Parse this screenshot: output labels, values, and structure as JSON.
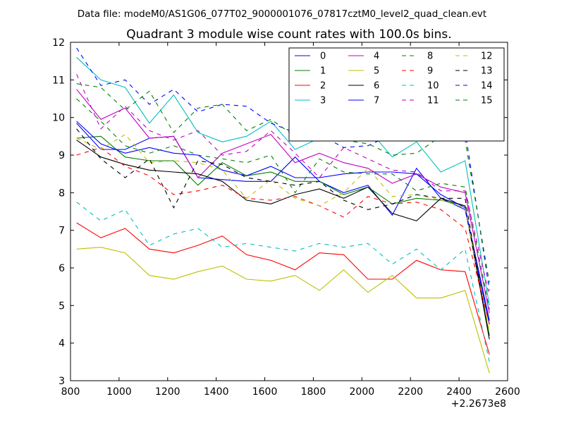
{
  "file_label": "Data file: modeM0/AS1G06_077T02_9000001076_07817cztM0_level2_quad_clean.evt",
  "chart_data": {
    "type": "line",
    "title": "Quadrant 3 module wise count rates with 100.0s bins.",
    "xlabel": "",
    "ylabel": "",
    "x_offset_label": "+2.2673e8",
    "xlim": [
      800,
      2600
    ],
    "ylim": [
      3,
      12
    ],
    "xticks": [
      "800",
      "1000",
      "1200",
      "1400",
      "1600",
      "1800",
      "2000",
      "2200",
      "2400",
      "2600"
    ],
    "yticks": [
      "3",
      "4",
      "5",
      "6",
      "7",
      "8",
      "9",
      "10",
      "11",
      "12"
    ],
    "legend_position": "top-right",
    "x": [
      825,
      925,
      1025,
      1125,
      1225,
      1325,
      1425,
      1525,
      1625,
      1725,
      1825,
      1925,
      2025,
      2125,
      2225,
      2325,
      2425,
      2525
    ],
    "series": [
      {
        "name": "0",
        "color": "#0000ff",
        "dash": "solid",
        "values": [
          9.85,
          9.15,
          9.15,
          9.45,
          9.5,
          8.4,
          8.35,
          8.3,
          8.3,
          8.95,
          8.3,
          8.0,
          8.2,
          7.4,
          8.65,
          7.85,
          7.55,
          4.5
        ]
      },
      {
        "name": "1",
        "color": "#008000",
        "dash": "solid",
        "values": [
          9.45,
          9.5,
          8.95,
          8.85,
          8.85,
          8.2,
          8.8,
          8.45,
          8.55,
          8.3,
          8.3,
          7.95,
          8.15,
          7.7,
          7.85,
          7.8,
          7.65,
          4.2
        ]
      },
      {
        "name": "2",
        "color": "#ff0000",
        "dash": "solid",
        "values": [
          7.2,
          6.8,
          7.05,
          6.5,
          6.4,
          6.6,
          6.85,
          6.35,
          6.2,
          5.95,
          6.4,
          6.35,
          5.7,
          5.7,
          6.2,
          5.95,
          5.9,
          3.7
        ]
      },
      {
        "name": "3",
        "color": "#00bfbf",
        "dash": "solid",
        "values": [
          11.6,
          11.0,
          10.8,
          9.85,
          10.6,
          9.6,
          9.35,
          9.5,
          9.9,
          9.15,
          9.45,
          9.55,
          9.7,
          8.95,
          9.35,
          8.55,
          8.85,
          5.0
        ]
      },
      {
        "name": "4",
        "color": "#bf00bf",
        "dash": "solid",
        "values": [
          10.75,
          9.95,
          10.25,
          9.45,
          9.5,
          8.4,
          9.05,
          9.3,
          9.55,
          8.8,
          9.05,
          8.8,
          8.65,
          8.25,
          8.5,
          8.15,
          8.0,
          4.8
        ]
      },
      {
        "name": "5",
        "color": "#bfbf00",
        "dash": "solid",
        "values": [
          6.5,
          6.55,
          6.4,
          5.8,
          5.7,
          5.9,
          6.05,
          5.7,
          5.65,
          5.8,
          5.4,
          5.95,
          5.35,
          5.8,
          5.2,
          5.2,
          5.4,
          3.2
        ]
      },
      {
        "name": "6",
        "color": "#000000",
        "dash": "solid",
        "values": [
          9.4,
          8.95,
          8.75,
          8.6,
          8.55,
          8.5,
          8.3,
          7.8,
          7.7,
          7.95,
          8.1,
          7.85,
          8.15,
          7.45,
          7.25,
          7.85,
          7.65,
          4.1
        ]
      },
      {
        "name": "7",
        "color": "#0000ff",
        "dash": "solid",
        "values": [
          9.9,
          9.3,
          9.05,
          9.2,
          9.05,
          9.0,
          8.6,
          8.45,
          8.7,
          8.4,
          8.4,
          8.5,
          8.55,
          8.55,
          8.5,
          7.95,
          7.6,
          4.6
        ]
      },
      {
        "name": "8",
        "color": "#008000",
        "dash": "dashed",
        "values": [
          10.5,
          9.9,
          9.25,
          9.05,
          9.25,
          9.0,
          8.9,
          8.8,
          9.0,
          8.0,
          8.9,
          8.55,
          8.5,
          8.5,
          8.05,
          8.25,
          8.15,
          4.9
        ]
      },
      {
        "name": "9",
        "color": "#ff0000",
        "dash": "dashed",
        "values": [
          9.0,
          9.2,
          8.7,
          8.45,
          7.95,
          8.05,
          8.2,
          7.85,
          7.8,
          7.9,
          7.65,
          7.35,
          7.9,
          7.7,
          7.75,
          7.55,
          7.05,
          4.5
        ]
      },
      {
        "name": "10",
        "color": "#00bfbf",
        "dash": "dashed",
        "values": [
          7.75,
          7.25,
          7.55,
          6.6,
          6.9,
          7.05,
          6.55,
          6.65,
          6.55,
          6.45,
          6.65,
          6.55,
          6.65,
          6.1,
          6.5,
          5.95,
          6.5,
          3.5
        ]
      },
      {
        "name": "11",
        "color": "#bf00bf",
        "dash": "dashed",
        "values": [
          11.15,
          9.7,
          10.3,
          9.65,
          9.4,
          9.65,
          9.0,
          9.1,
          9.65,
          9.05,
          8.4,
          9.2,
          8.9,
          8.6,
          8.55,
          8.05,
          8.05,
          5.25
        ]
      },
      {
        "name": "12",
        "color": "#bfbf00",
        "dash": "dashed",
        "values": [
          9.45,
          9.15,
          9.55,
          8.8,
          8.85,
          8.8,
          8.6,
          7.85,
          8.35,
          7.85,
          7.65,
          8.0,
          8.65,
          7.9,
          7.95,
          7.8,
          7.6,
          4.3
        ]
      },
      {
        "name": "13",
        "color": "#000000",
        "dash": "dashed",
        "values": [
          9.7,
          8.9,
          8.4,
          8.9,
          7.6,
          8.85,
          8.75,
          8.4,
          8.3,
          8.2,
          8.3,
          7.8,
          7.55,
          7.7,
          7.95,
          7.85,
          7.85,
          4.1
        ]
      },
      {
        "name": "14",
        "color": "#0000ff",
        "dash": "dashed",
        "values": [
          11.85,
          10.85,
          11.0,
          10.35,
          10.75,
          10.15,
          10.35,
          10.3,
          9.85,
          9.6,
          9.55,
          9.2,
          9.25,
          9.55,
          9.4,
          9.5,
          9.65,
          5.4
        ]
      },
      {
        "name": "15",
        "color": "#008000",
        "dash": "dashed",
        "values": [
          10.9,
          10.8,
          10.2,
          10.7,
          9.6,
          10.25,
          10.35,
          9.65,
          9.95,
          9.5,
          9.55,
          9.4,
          9.3,
          9.0,
          9.05,
          9.5,
          9.4,
          5.6
        ]
      }
    ]
  }
}
